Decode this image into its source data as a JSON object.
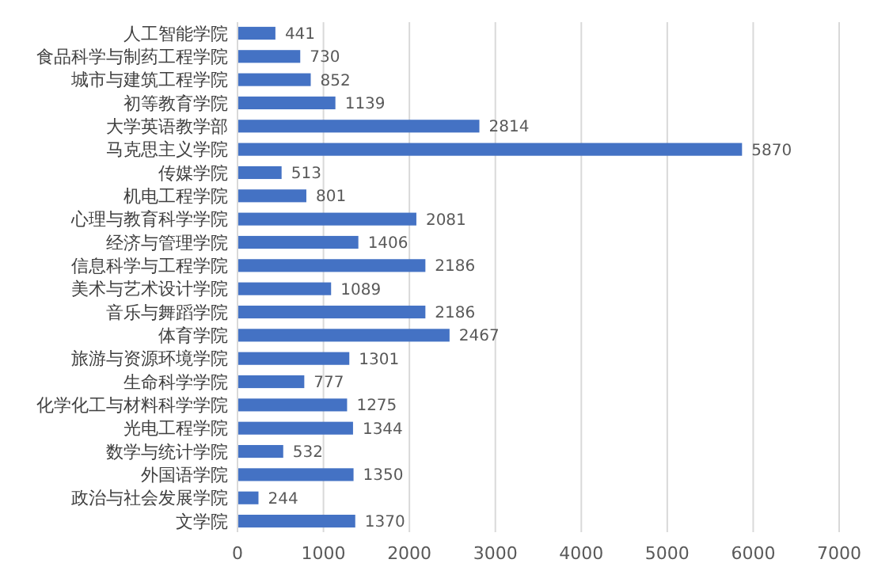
{
  "chart_data": {
    "type": "bar",
    "orientation": "horizontal",
    "categories": [
      "人工智能学院",
      "食品科学与制药工程学院",
      "城市与建筑工程学院",
      "初等教育学院",
      "大学英语教学部",
      "马克思主义学院",
      "传媒学院",
      "机电工程学院",
      "心理与教育科学学院",
      "经济与管理学院",
      "信息科学与工程学院",
      "美术与艺术设计学院",
      "音乐与舞蹈学院",
      "体育学院",
      "旅游与资源环境学院",
      "生命科学学院",
      "化学化工与材料科学学院",
      "光电工程学院",
      "数学与统计学院",
      "外国语学院",
      "政治与社会发展学院",
      "文学院"
    ],
    "values": [
      441,
      730,
      852,
      1139,
      2814,
      5870,
      513,
      801,
      2081,
      1406,
      2186,
      1089,
      2186,
      2467,
      1301,
      777,
      1275,
      1344,
      532,
      1350,
      244,
      1370
    ],
    "color": "#4472c4",
    "xlim": [
      0,
      7000
    ],
    "xticks": [
      0,
      1000,
      2000,
      3000,
      4000,
      5000,
      6000,
      7000
    ],
    "grid": "x",
    "data_labels": true
  }
}
